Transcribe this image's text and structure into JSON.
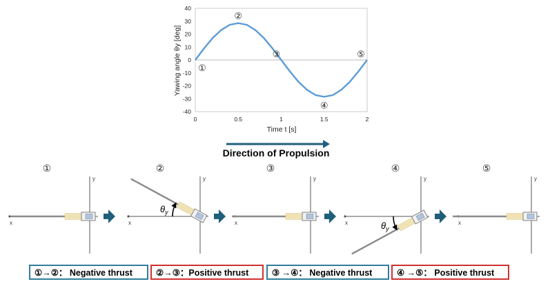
{
  "chart_data": {
    "type": "line",
    "title": "",
    "xlabel": "Time t [s]",
    "ylabel": "Yawing angle θy [deg]",
    "xlim": [
      0,
      2
    ],
    "ylim": [
      -40,
      40
    ],
    "x_ticks": [
      "0",
      "0.5",
      "1",
      "1.5",
      "2"
    ],
    "y_ticks": [
      "40",
      "30",
      "20",
      "10",
      "0",
      "-10",
      "-20",
      "-30",
      "-40"
    ],
    "series": [
      {
        "x": [
          0,
          0.1,
          0.2,
          0.3,
          0.4,
          0.5,
          0.6,
          0.7,
          0.8,
          0.9,
          1.0,
          1.1,
          1.2,
          1.3,
          1.4,
          1.5,
          1.6,
          1.7,
          1.8,
          1.9,
          2.0
        ],
        "values": [
          0,
          8.8,
          16.8,
          23.1,
          27.2,
          28.5,
          27.2,
          23.1,
          16.8,
          8.8,
          0,
          -8.8,
          -16.8,
          -23.1,
          -27.2,
          -28.5,
          -27.2,
          -23.1,
          -16.8,
          -8.8,
          0
        ]
      }
    ],
    "annotations": [
      {
        "label": "①",
        "x": 0,
        "y": 0
      },
      {
        "label": "②",
        "x": 0.5,
        "y": 28.5
      },
      {
        "label": "③",
        "x": 1.0,
        "y": 0
      },
      {
        "label": "④",
        "x": 1.5,
        "y": -28.5
      },
      {
        "label": "⑤",
        "x": 2.0,
        "y": 0
      }
    ],
    "line_color": "#5b9bd5",
    "grid": false
  },
  "propulsion": {
    "label": "Direction of Propulsion",
    "arrow_color": "#1f5f7a"
  },
  "panels": [
    {
      "marker": "①",
      "angle_deg": 0
    },
    {
      "marker": "②",
      "angle_deg": 28.5,
      "theta_label": "θ",
      "theta_sub": "y"
    },
    {
      "marker": "③",
      "angle_deg": 0
    },
    {
      "marker": "④",
      "angle_deg": -28.5,
      "theta_label": "θ",
      "theta_sub": "y"
    },
    {
      "marker": "⑤",
      "angle_deg": 0
    }
  ],
  "axis_labels": {
    "x": "x",
    "y": "y"
  },
  "step_arrow_color": "#1f5f7a",
  "thrust_labels": [
    {
      "text": "①→②： Negative thrust",
      "color": "#2e7d9a"
    },
    {
      "text": "②→③：Positive thrust",
      "color": "#d0302f"
    },
    {
      "text": "③ →④： Negative thrust",
      "color": "#2e7d9a"
    },
    {
      "text": "④ →⑤： Positive thrust",
      "color": "#d0302f"
    }
  ]
}
